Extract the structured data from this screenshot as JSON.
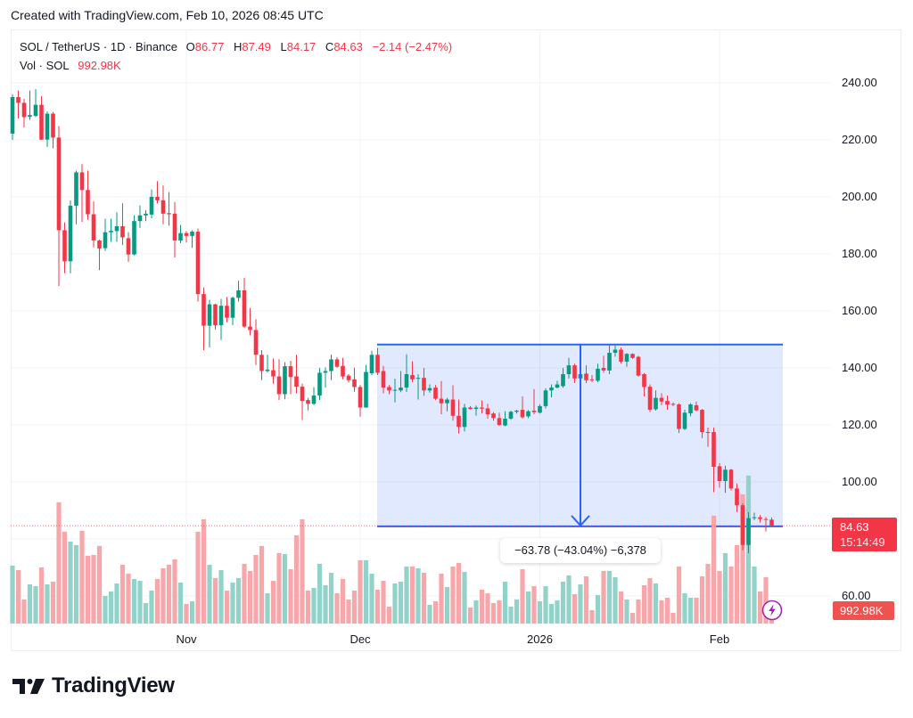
{
  "header": {
    "caption": "Created with TradingView.com, Feb 10, 2026 08:45 UTC"
  },
  "legend": {
    "symbol_line": "SOL / TetherUS · 1D · Binance",
    "ohlc": [
      {
        "key": "O",
        "value": "86.77"
      },
      {
        "key": "H",
        "value": "87.49"
      },
      {
        "key": "L",
        "value": "84.17"
      },
      {
        "key": "C",
        "value": "84.63"
      }
    ],
    "change": "−2.14 (−2.47%)",
    "volume_label": "Vol · SOL",
    "volume_value": "992.98K"
  },
  "price_axis": {
    "labels": [
      "240.00",
      "220.00",
      "200.00",
      "180.00",
      "160.00",
      "140.00",
      "120.00",
      "100.00",
      "60.00"
    ]
  },
  "time_axis": {
    "labels": [
      {
        "text": "Nov",
        "index": 30
      },
      {
        "text": "Dec",
        "index": 60
      },
      {
        "text": "2026",
        "index": 91
      },
      {
        "text": "Feb",
        "index": 122
      }
    ]
  },
  "last_price_tag": {
    "price": "84.63",
    "countdown": "15:14:49"
  },
  "volume_tag": {
    "value": "992.98K"
  },
  "measurement": {
    "label": "−63.78 (−43.04%) −6,378"
  },
  "logo": {
    "text": "TradingView"
  },
  "colors": {
    "up": "#089981",
    "down": "#f23645",
    "up_volume": "#92d3c9",
    "down_volume": "#f7a6a9",
    "range_fill": "rgba(41,98,255,0.14)",
    "range_line": "#2962ff",
    "grid": "#f2f3f6",
    "bolt": "#9c27b0"
  },
  "chart_data": {
    "type": "candlestick",
    "title": "SOL / TetherUS · 1D · Binance",
    "xlabel": "",
    "ylabel": "",
    "x_tick_labels": [
      "Nov",
      "Dec",
      "2026",
      "Feb"
    ],
    "y_ticks": [
      60,
      80,
      100,
      120,
      140,
      160,
      180,
      200,
      220,
      240
    ],
    "ylim": [
      49.375,
      258.75
    ],
    "grid": true,
    "legend_position": "top-left",
    "last_price": 84.63,
    "series": [
      {
        "name": "SOL/USDT OHLC",
        "ohlc": [
          [
            222.2,
            236,
            220,
            235
          ],
          [
            235,
            237.3,
            227.5,
            233
          ],
          [
            233,
            234.4,
            224.4,
            228
          ],
          [
            228.1,
            237.3,
            227,
            228.7
          ],
          [
            228.4,
            237.8,
            228,
            232.3
          ],
          [
            232.3,
            235.3,
            220,
            220.1
          ],
          [
            220.1,
            230,
            217.5,
            229.2
          ],
          [
            229.2,
            229.8,
            217,
            220.8
          ],
          [
            220.8,
            224.8,
            168.7,
            188.3
          ],
          [
            188.3,
            191,
            173.2,
            177.4
          ],
          [
            177.4,
            198.8,
            173.2,
            196.9
          ],
          [
            196.9,
            209.2,
            190.4,
            208.6
          ],
          [
            208.6,
            211.5,
            191.2,
            202.4
          ],
          [
            202.4,
            209.2,
            192,
            193.9
          ],
          [
            193.9,
            198.4,
            182.3,
            184.7
          ],
          [
            184.7,
            185,
            174.3,
            181.9
          ],
          [
            182,
            192.3,
            181,
            187.6
          ],
          [
            187.6,
            192.3,
            184.2,
            188.1
          ],
          [
            188,
            194.6,
            184.2,
            189.7
          ],
          [
            189.7,
            197.7,
            183.1,
            185.8
          ],
          [
            185.5,
            187.6,
            177.2,
            179.8
          ],
          [
            179.8,
            193.5,
            179.5,
            191.5
          ],
          [
            191.5,
            197,
            189.1,
            193.5
          ],
          [
            193.5,
            195.3,
            191.5,
            194.1
          ],
          [
            193.8,
            202.6,
            192.5,
            200
          ],
          [
            200,
            205.5,
            197.7,
            198.8
          ],
          [
            198.8,
            204,
            190.4,
            194.1
          ],
          [
            194.3,
            201.7,
            189.9,
            193.9
          ],
          [
            194.1,
            198.2,
            178.7,
            184.7
          ],
          [
            184.7,
            190.1,
            183.8,
            187.3
          ],
          [
            187.3,
            188,
            184,
            186.3
          ],
          [
            186.3,
            188.3,
            182.1,
            187.8
          ],
          [
            187.8,
            188.9,
            163.3,
            165.9
          ],
          [
            165.9,
            168.2,
            146.2,
            154.8
          ],
          [
            154.8,
            163.9,
            147.2,
            162.3
          ],
          [
            162.3,
            162.5,
            153.4,
            155
          ],
          [
            155,
            164.2,
            149.8,
            161.8
          ],
          [
            161.8,
            164.9,
            156,
            157.6
          ],
          [
            157.6,
            165,
            155,
            164.6
          ],
          [
            164.6,
            170.6,
            163.3,
            167.2
          ],
          [
            167.2,
            171.6,
            154,
            154.5
          ],
          [
            154.5,
            161,
            151.4,
            153.3
          ],
          [
            153.3,
            157.1,
            141,
            144.6
          ],
          [
            144.6,
            146.2,
            135.7,
            138.9
          ],
          [
            138.9,
            144.6,
            138.4,
            139.4
          ],
          [
            139.2,
            143.3,
            134.5,
            137
          ],
          [
            137,
            143,
            128.7,
            130.8
          ],
          [
            130.8,
            142,
            129,
            140.6
          ],
          [
            140.6,
            142.5,
            130.8,
            136.8
          ],
          [
            137,
            144.6,
            131.1,
            133.4
          ],
          [
            133.4,
            134.5,
            121.7,
            128.4
          ],
          [
            128.7,
            129.5,
            125.1,
            127.4
          ],
          [
            127.4,
            133.3,
            127,
            130.3
          ],
          [
            130.3,
            140,
            128.7,
            138.3
          ],
          [
            138.3,
            140.2,
            133.1,
            138.9
          ],
          [
            138.9,
            144.6,
            135.7,
            143
          ],
          [
            143,
            143.8,
            140,
            140.4
          ],
          [
            140.7,
            143.5,
            136,
            137
          ],
          [
            137.3,
            137.8,
            134.9,
            135.7
          ],
          [
            136,
            140.1,
            131.6,
            133.3
          ],
          [
            133.3,
            134,
            122.9,
            126.1
          ],
          [
            126.1,
            141,
            126,
            138.6
          ],
          [
            138.1,
            146,
            137.5,
            144.6
          ],
          [
            144.6,
            147,
            137.5,
            138.3
          ],
          [
            138.9,
            140.7,
            131.1,
            133.1
          ],
          [
            133.3,
            134,
            130.8,
            132.1
          ],
          [
            132.1,
            136.2,
            127.9,
            132.3
          ],
          [
            132.1,
            138.9,
            131.5,
            133.1
          ],
          [
            133.1,
            144.8,
            131.6,
            137.8
          ],
          [
            137.5,
            142.3,
            135,
            136
          ],
          [
            136.2,
            137.8,
            128.9,
            136.5
          ],
          [
            136.5,
            140,
            130.2,
            132.1
          ],
          [
            132.1,
            134.2,
            131.3,
            132.9
          ],
          [
            133.1,
            134,
            128.7,
            129.2
          ],
          [
            129.2,
            135.4,
            123.7,
            127.6
          ],
          [
            127.6,
            129.5,
            124.8,
            128.9
          ],
          [
            128.9,
            133.9,
            121.5,
            123.2
          ],
          [
            123.2,
            128.9,
            117,
            119.3
          ],
          [
            119.3,
            127.4,
            117.7,
            126.1
          ],
          [
            126.1,
            126.6,
            125.4,
            125.6
          ],
          [
            125.6,
            126.8,
            123.2,
            126.1
          ],
          [
            126.1,
            128.6,
            124,
            125.7
          ],
          [
            125.8,
            127.4,
            122.2,
            123.7
          ],
          [
            124,
            124.5,
            121.5,
            122.4
          ],
          [
            122.4,
            124.3,
            119.6,
            120
          ],
          [
            119.8,
            124.8,
            119.5,
            122.2
          ],
          [
            122.2,
            125,
            121.8,
            124.6
          ],
          [
            124.6,
            125.3,
            124,
            125
          ],
          [
            125.3,
            130,
            122.2,
            122.7
          ],
          [
            123,
            125.2,
            122.4,
            124.8
          ],
          [
            125,
            132.6,
            123.7,
            124.5
          ],
          [
            124.3,
            127.2,
            124,
            126.6
          ],
          [
            126.6,
            132.8,
            125.8,
            132.1
          ],
          [
            132.1,
            134.2,
            129.7,
            133.1
          ],
          [
            133.1,
            135.5,
            132.8,
            134.2
          ],
          [
            133.6,
            140,
            133,
            137.8
          ],
          [
            137.8,
            143.5,
            136.3,
            140.9
          ],
          [
            140.9,
            141.5,
            134.7,
            136.3
          ],
          [
            136.3,
            139,
            135,
            137.8
          ],
          [
            138,
            140.9,
            134.7,
            135.7
          ],
          [
            136,
            137.5,
            135,
            135.7
          ],
          [
            135.5,
            141.5,
            135,
            139.7
          ],
          [
            140,
            144.3,
            138.3,
            139.1
          ],
          [
            139.1,
            148.4,
            137.8,
            145.3
          ],
          [
            145.3,
            147.8,
            143.9,
            146.4
          ],
          [
            146.4,
            147.2,
            141.5,
            142.2
          ],
          [
            142.2,
            145.2,
            140.4,
            144.9
          ],
          [
            144.9,
            145.1,
            143.2,
            143.5
          ],
          [
            143.9,
            144.2,
            136.9,
            137.3
          ],
          [
            137.8,
            138.2,
            130,
            133.3
          ],
          [
            133.4,
            134.2,
            124.5,
            125.3
          ],
          [
            125.5,
            132.1,
            125,
            129.5
          ],
          [
            129.5,
            131.1,
            126.9,
            128.2
          ],
          [
            128.4,
            130.3,
            125.3,
            127.1
          ],
          [
            127.4,
            127.9,
            126.6,
            127.1
          ],
          [
            127.2,
            127.6,
            117.2,
            118.6
          ],
          [
            118.6,
            125.3,
            118.2,
            124.3
          ],
          [
            124.1,
            127.6,
            123,
            127.2
          ],
          [
            126.9,
            128.2,
            124.8,
            125.1
          ],
          [
            125.3,
            125.6,
            115.4,
            117.5
          ],
          [
            117.5,
            119.1,
            112.3,
            117.2
          ],
          [
            117.5,
            119.1,
            96.4,
            105.3
          ],
          [
            105.5,
            106.6,
            98,
            100.3
          ],
          [
            100.3,
            105.7,
            96.2,
            104.3
          ],
          [
            104.3,
            104.6,
            97,
            97.7
          ],
          [
            97.7,
            99.5,
            89.4,
            91.8
          ],
          [
            91.8,
            92.5,
            76,
            77.9
          ],
          [
            77.9,
            89.4,
            75,
            87.3
          ],
          [
            87.3,
            89.2,
            86.6,
            87.6
          ],
          [
            87.6,
            88.4,
            85.8,
            87.0
          ],
          [
            87.0,
            87.7,
            82.6,
            86.77
          ],
          [
            86.77,
            87.49,
            84.17,
            84.63
          ]
        ]
      },
      {
        "name": "Volume (K SOL)",
        "values": [
          4615,
          4260,
          1917,
          3124,
          2982,
          4473,
          3124,
          3337,
          9656,
          7313,
          6532,
          6248,
          7384,
          5396,
          5467,
          6177,
          2201,
          2556,
          3195,
          4686,
          3976,
          3550,
          3408,
          1633,
          2627,
          3550,
          4402,
          4686,
          5112,
          3266,
          1562,
          1775,
          7313,
          8307,
          4686,
          3621,
          4260,
          2627,
          3266,
          3621,
          4757,
          4189,
          5467,
          6177,
          2414,
          3408,
          5609,
          5538,
          4331,
          7029,
          8307,
          2627,
          2840,
          4757,
          3053,
          4047,
          2414,
          3550,
          1917,
          2627,
          5041,
          5041,
          3976,
          2698,
          3408,
          1349,
          3195,
          3337,
          4544,
          4544,
          4402,
          4047,
          1491,
          1775,
          3976,
          2911,
          4544,
          4828,
          4118,
          1278,
          1846,
          2698,
          2414,
          1633,
          1846,
          3337,
          1349,
          1917,
          4331,
          2556,
          2982,
          1775,
          2982,
          1562,
          1846,
          3337,
          3834,
          2343,
          3124,
          3763,
          1065,
          2272,
          4189,
          4189,
          3692,
          2556,
          1917,
          852,
          1917,
          3053,
          3621,
          3195,
          1846,
          2059,
          852,
          4544,
          2414,
          2059,
          2059,
          3763,
          4757,
          8591,
          4189,
          5609,
          4544,
          6248,
          10295,
          11786,
          4544,
          2556,
          3692,
          992.98
        ]
      }
    ],
    "annotations": [
      {
        "type": "price_range",
        "top_price": 148.19,
        "bottom_price": 84.41,
        "start_index": 63,
        "end_index": 133,
        "arrow_index": 98,
        "label": "−63.78 (−43.04%) −6,378"
      }
    ]
  }
}
